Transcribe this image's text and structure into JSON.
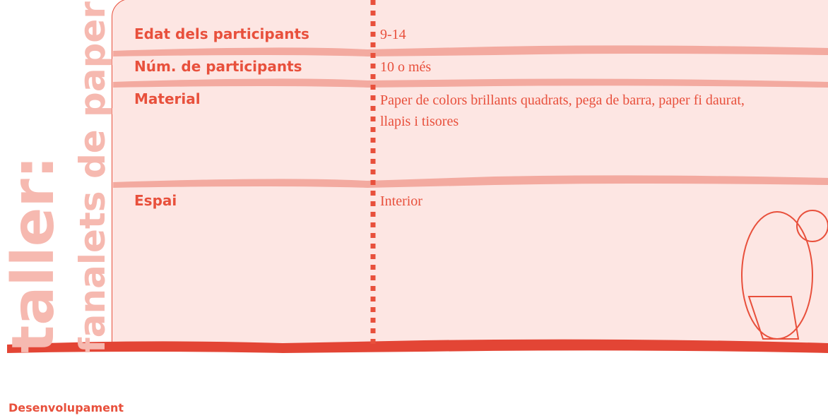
{
  "sidebar": {
    "title": "taller:",
    "subtitle": "fanalets de paper"
  },
  "table": {
    "rows": [
      [
        "Edat dels participants",
        "9-14"
      ],
      [
        "Núm. de participants",
        "10 o més"
      ],
      [
        "Material",
        "Paper de colors brillants quadrats, pega de barra, paper fi daurat, llapis i tisores"
      ],
      [
        "Espai",
        "Interior"
      ]
    ]
  },
  "section": {
    "heading": "Desenvolupament"
  }
}
